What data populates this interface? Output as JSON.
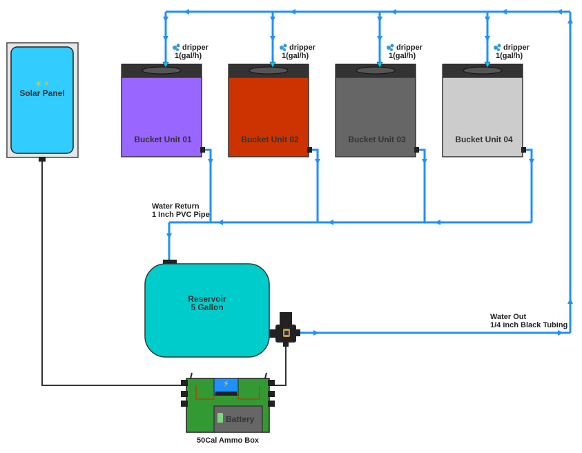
{
  "solar_panel": {
    "title": "Solar Panel",
    "icons": "☀ ⚡",
    "color": "#33ccff"
  },
  "buckets": [
    {
      "label": "Bucket Unit 01",
      "color": "#9966ff",
      "dripper_label": "dripper",
      "dripper_rate": "1(gal/h)"
    },
    {
      "label": "Bucket Unit 02",
      "color": "#cc3300",
      "dripper_label": "dripper",
      "dripper_rate": "1(gal/h)"
    },
    {
      "label": "Bucket Unit 03",
      "color": "#666666",
      "dripper_label": "dripper",
      "dripper_rate": "1(gal/h)"
    },
    {
      "label": "Bucket Unit 04",
      "color": "#cccccc",
      "dripper_label": "dripper",
      "dripper_rate": "1(gal/h)"
    }
  ],
  "water_return": {
    "line1": "Water Return",
    "line2": "1 Inch PVC Pipe"
  },
  "reservoir": {
    "line1": "Reservoir",
    "line2": "5 Gallon",
    "color": "#00cccc"
  },
  "water_out": {
    "line1": "Water Out",
    "line2": "1/4 inch Black Tubing"
  },
  "ammo_box": {
    "title": "50Cal Ammo Box",
    "battery_label": "Battery",
    "color": "#339933"
  },
  "colors": {
    "pipe": "#1e90ff",
    "cable": "#333333"
  }
}
